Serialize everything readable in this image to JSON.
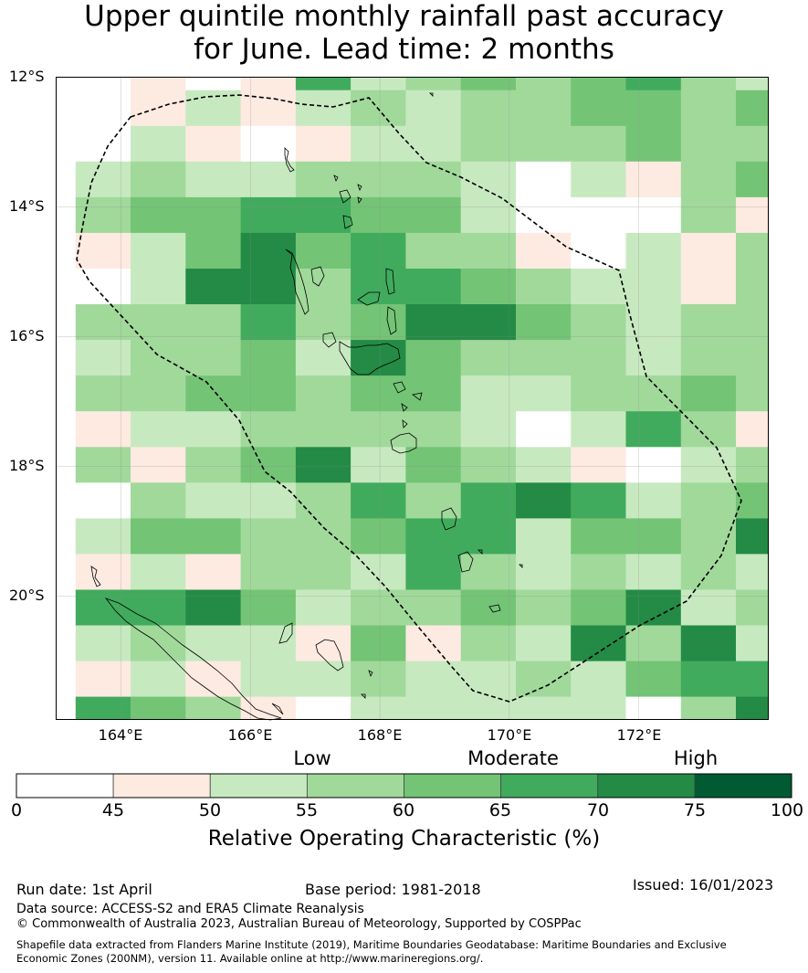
{
  "title": {
    "line1": "Upper quintile monthly rainfall past accuracy",
    "line2": "for June. Lead time: 2 months"
  },
  "map": {
    "lat_labels": [
      "12°S",
      "14°S",
      "16°S",
      "18°S",
      "20°S"
    ],
    "lon_labels": [
      "164°E",
      "166°E",
      "168°E",
      "170°E",
      "172°E"
    ],
    "extent": {
      "lon_min": 163.0,
      "lon_max": 174.0,
      "lat_top": -12.0,
      "lat_bottom": -21.9
    },
    "grid_lon": [
      163.0,
      163.3,
      164.15,
      165.0,
      165.85,
      166.7,
      167.55,
      168.4,
      169.25,
      170.1,
      170.95,
      171.8,
      172.65,
      173.5,
      174.0
    ],
    "grid_lat": [
      -12.0,
      -12.2,
      -12.75,
      -13.3,
      -13.85,
      -14.4,
      -14.95,
      -15.5,
      -16.05,
      -16.6,
      -17.15,
      -17.7,
      -18.25,
      -18.8,
      -19.35,
      -19.9,
      -20.45,
      -21.0,
      -21.55,
      -21.9
    ],
    "rows": [
      [
        -1,
        -1,
        1,
        0,
        1,
        5,
        2,
        3,
        4,
        3,
        4,
        5,
        3,
        2
      ],
      [
        -1,
        -1,
        1,
        2,
        1,
        2,
        3,
        2,
        3,
        3,
        4,
        4,
        3,
        4
      ],
      [
        -1,
        -1,
        2,
        1,
        0,
        1,
        2,
        2,
        3,
        3,
        3,
        4,
        3,
        3
      ],
      [
        -1,
        2,
        3,
        2,
        2,
        3,
        3,
        3,
        2,
        0,
        2,
        1,
        3,
        4
      ],
      [
        -1,
        3,
        4,
        4,
        5,
        5,
        4,
        4,
        2,
        0,
        0,
        0,
        3,
        1
      ],
      [
        -1,
        1,
        2,
        4,
        6,
        4,
        5,
        3,
        3,
        1,
        0,
        2,
        1,
        3
      ],
      [
        -1,
        0,
        2,
        6,
        6,
        3,
        5,
        5,
        4,
        3,
        2,
        2,
        1,
        3
      ],
      [
        -1,
        3,
        3,
        3,
        5,
        3,
        4,
        6,
        6,
        4,
        3,
        2,
        3,
        3
      ],
      [
        -1,
        2,
        3,
        3,
        4,
        2,
        6,
        4,
        3,
        3,
        3,
        2,
        3,
        3
      ],
      [
        -1,
        3,
        3,
        4,
        4,
        3,
        4,
        4,
        2,
        2,
        3,
        3,
        4,
        3
      ],
      [
        -1,
        1,
        2,
        2,
        3,
        3,
        3,
        3,
        2,
        0,
        2,
        5,
        3,
        1
      ],
      [
        -1,
        3,
        1,
        3,
        4,
        6,
        2,
        4,
        3,
        2,
        1,
        0,
        2,
        3
      ],
      [
        -1,
        0,
        3,
        2,
        2,
        3,
        5,
        3,
        5,
        6,
        5,
        2,
        3,
        4
      ],
      [
        -1,
        2,
        4,
        4,
        3,
        3,
        4,
        5,
        5,
        2,
        4,
        4,
        3,
        6
      ],
      [
        -1,
        1,
        2,
        1,
        3,
        3,
        2,
        5,
        3,
        2,
        3,
        2,
        3,
        2
      ],
      [
        -1,
        5,
        5,
        6,
        4,
        2,
        3,
        3,
        4,
        3,
        4,
        6,
        2,
        3
      ],
      [
        -1,
        2,
        3,
        2,
        2,
        1,
        4,
        1,
        3,
        2,
        6,
        3,
        6,
        2
      ],
      [
        -1,
        1,
        2,
        1,
        2,
        2,
        3,
        2,
        2,
        3,
        2,
        4,
        5,
        5
      ],
      [
        -1,
        5,
        4,
        3,
        1,
        0,
        2,
        2,
        2,
        2,
        2,
        0,
        3,
        6
      ]
    ]
  },
  "colorbar": {
    "ticks": [
      "0",
      "45",
      "50",
      "55",
      "60",
      "65",
      "70",
      "75",
      "100"
    ],
    "colors": [
      "#ffffff",
      "#fdeae1",
      "#c7e9c0",
      "#a1d99b",
      "#74c476",
      "#41ab5d",
      "#238b45",
      "#005a32"
    ],
    "categories": [
      "Low",
      "Moderate",
      "High"
    ],
    "label": "Relative Operating Characteristic (%)"
  },
  "footer": {
    "run_date": "Run date: 1st April",
    "base_period": "Base period: 1981-2018",
    "issued": "Issued: 16/01/2023",
    "data_source": "Data source: ACCESS-S2 and ERA5 Climate Reanalysis",
    "copyright": "© Commonwealth of Australia 2023, Australian Bureau of Meteorology, Supported by COSPPac",
    "shapefile_line1": "Shapefile data extracted from Flanders Marine Institute (2019), Maritime Boundaries Geodatabase: Maritime Boundaries and Exclusive",
    "shapefile_line2": "Economic Zones (200NM), version 11. Available online at http://www.marineregions.org/."
  }
}
